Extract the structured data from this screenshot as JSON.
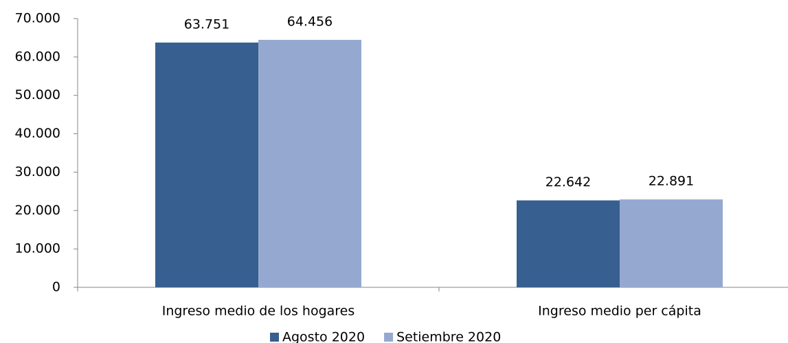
{
  "chart_data": {
    "type": "bar",
    "categories": [
      "Ingreso medio de los hogares",
      "Ingreso medio per cápita"
    ],
    "series": [
      {
        "name": "Agosto 2020",
        "color": "#375f8f",
        "values": [
          63751,
          22642
        ],
        "value_labels": [
          "63.751",
          "22.642"
        ]
      },
      {
        "name": "Setiembre 2020",
        "color": "#95a9d0",
        "values": [
          64456,
          22891
        ],
        "value_labels": [
          "64.456",
          "22.891"
        ]
      }
    ],
    "ylim": [
      0,
      70000
    ],
    "yticks": [
      {
        "value": 0,
        "label": "0"
      },
      {
        "value": 10000,
        "label": "10.000"
      },
      {
        "value": 20000,
        "label": "20.000"
      },
      {
        "value": 30000,
        "label": "30.000"
      },
      {
        "value": 40000,
        "label": "40.000"
      },
      {
        "value": 50000,
        "label": "50.000"
      },
      {
        "value": 60000,
        "label": "60.000"
      },
      {
        "value": 70000,
        "label": "70.000"
      }
    ],
    "legend": "bottom"
  }
}
